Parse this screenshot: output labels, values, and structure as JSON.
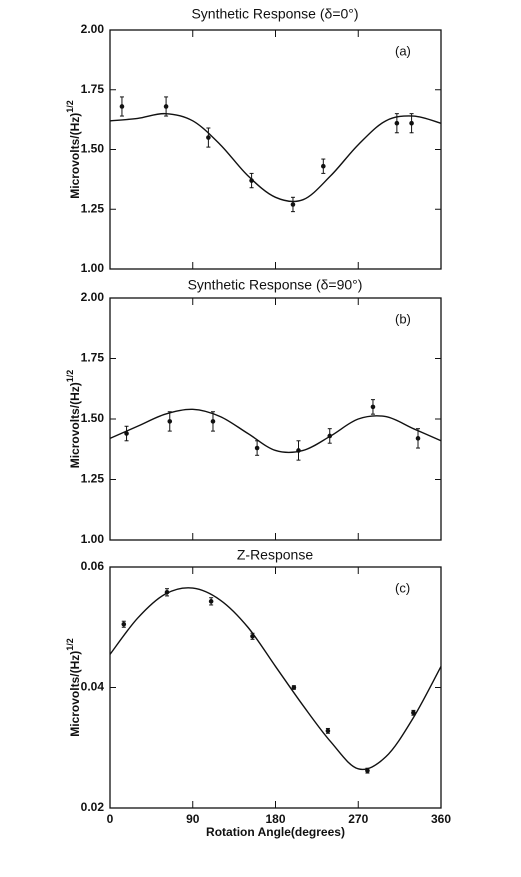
{
  "chart_data": [
    {
      "type": "scatter",
      "title": "Synthetic Response (δ=0°)",
      "annotation": "(a)",
      "y_label": "Microvolts/(Hz)",
      "y_label_sup": "1/2",
      "xlim": [
        0,
        360
      ],
      "xticks": [
        0,
        90,
        180,
        270,
        360
      ],
      "xtick_labels": false,
      "ylim": [
        1,
        2
      ],
      "yticks": [
        {
          "value": 1,
          "label": "1.00"
        },
        {
          "value": 1.25,
          "label": "1.25"
        },
        {
          "value": 1.5,
          "label": "1.50"
        },
        {
          "value": 1.75,
          "label": "1.75"
        },
        {
          "value": 2,
          "label": "2.00"
        }
      ],
      "series": [
        {
          "color": "#111111",
          "x": [
            13,
            61,
            107,
            154,
            199,
            232,
            312,
            328
          ],
          "values": [
            1.68,
            1.68,
            1.55,
            1.37,
            1.27,
            1.43,
            1.61,
            1.61
          ],
          "errors": [
            0.04,
            0.04,
            0.04,
            0.03,
            0.03,
            0.03,
            0.04,
            0.04
          ]
        },
        {
          "color": "#111111",
          "x": [
            0,
            30,
            60,
            90,
            120,
            150,
            180,
            210,
            240,
            270,
            300,
            330,
            360
          ],
          "values": [
            1.62,
            1.63,
            1.65,
            1.62,
            1.52,
            1.39,
            1.3,
            1.29,
            1.39,
            1.52,
            1.62,
            1.64,
            1.61
          ]
        }
      ]
    },
    {
      "type": "scatter",
      "title": "Synthetic Response (δ=90°)",
      "annotation": "(b)",
      "y_label": "Microvolts/(Hz)",
      "y_label_sup": "1/2",
      "xlim": [
        0,
        360
      ],
      "xticks": [
        0,
        90,
        180,
        270,
        360
      ],
      "xtick_labels": false,
      "ylim": [
        1,
        2
      ],
      "yticks": [
        {
          "value": 1,
          "label": "1.00"
        },
        {
          "value": 1.25,
          "label": "1.25"
        },
        {
          "value": 1.5,
          "label": "1.50"
        },
        {
          "value": 1.75,
          "label": "1.75"
        },
        {
          "value": 2,
          "label": "2.00"
        }
      ],
      "series": [
        {
          "color": "#111111",
          "x": [
            18,
            65,
            112,
            160,
            205,
            239,
            286,
            335
          ],
          "values": [
            1.44,
            1.49,
            1.49,
            1.38,
            1.37,
            1.43,
            1.55,
            1.42
          ],
          "errors": [
            0.03,
            0.04,
            0.04,
            0.03,
            0.04,
            0.03,
            0.03,
            0.04
          ]
        },
        {
          "color": "#111111",
          "x": [
            0,
            30,
            60,
            90,
            120,
            150,
            180,
            210,
            240,
            270,
            300,
            330,
            360
          ],
          "values": [
            1.42,
            1.47,
            1.52,
            1.54,
            1.51,
            1.44,
            1.37,
            1.37,
            1.43,
            1.5,
            1.51,
            1.46,
            1.41
          ]
        }
      ]
    },
    {
      "type": "scatter",
      "title": "Z-Response",
      "annotation": "(c)",
      "y_label": "Microvolts/(Hz)",
      "y_label_sup": "1/2",
      "x_label": "Rotation Angle(degrees)",
      "xlim": [
        0,
        360
      ],
      "xticks": [
        0,
        90,
        180,
        270,
        360
      ],
      "xtick_labels": true,
      "ylim": [
        0.02,
        0.06
      ],
      "yticks": [
        0.02,
        0.04,
        0.06
      ],
      "series": [
        {
          "color": "#111111",
          "x": [
            15,
            62,
            110,
            155,
            200,
            237,
            280,
            330
          ],
          "values": [
            0.0505,
            0.0558,
            0.0543,
            0.0485,
            0.04,
            0.0328,
            0.0262,
            0.0358
          ],
          "errors": [
            0.0005,
            0.0006,
            0.0006,
            0.0005,
            0.0003,
            0.0004,
            0.0004,
            0.0004
          ]
        },
        {
          "color": "#111111",
          "x": [
            0,
            30,
            60,
            90,
            120,
            150,
            180,
            210,
            240,
            270,
            300,
            330,
            360
          ],
          "values": [
            0.0455,
            0.0515,
            0.0555,
            0.0565,
            0.0545,
            0.05,
            0.0435,
            0.037,
            0.031,
            0.0265,
            0.0285,
            0.035,
            0.0435
          ]
        }
      ]
    }
  ]
}
